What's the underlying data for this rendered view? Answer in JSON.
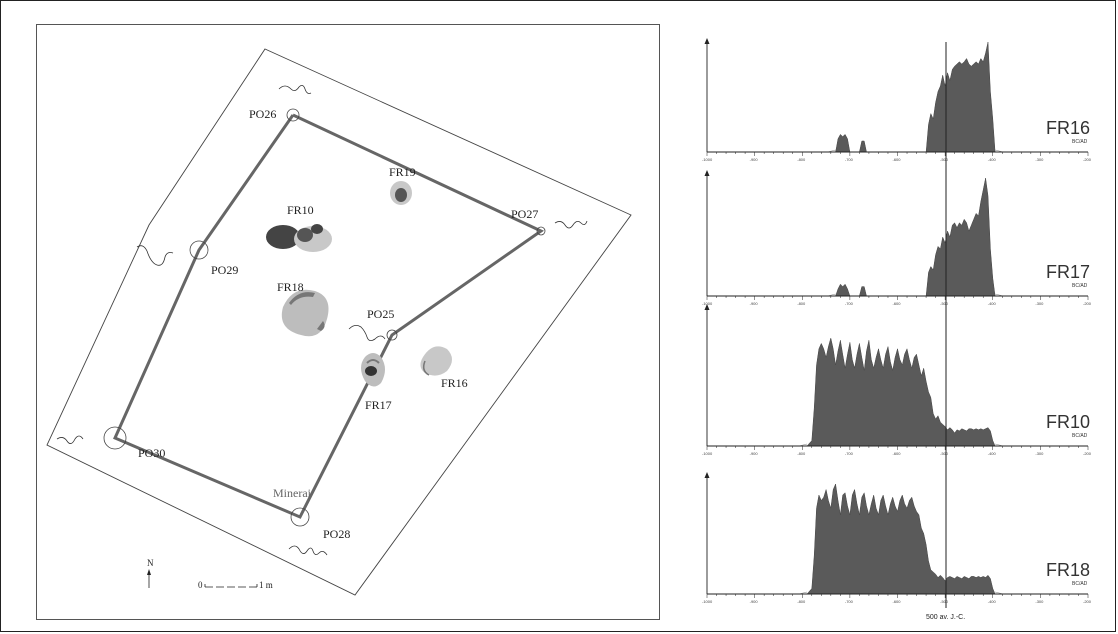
{
  "plan": {
    "posts": [
      "PO26",
      "PO27",
      "PO29",
      "PO25",
      "PO30",
      "PO28"
    ],
    "features": [
      "FR19",
      "FR10",
      "FR18",
      "FR17",
      "FR16"
    ],
    "minerai_label": "Minerai",
    "north_label": "N",
    "scale": {
      "start": "0",
      "end": "1 m"
    }
  },
  "charts": {
    "unit_label": "BC/AD",
    "footer_label": "500 av. J.-C.",
    "colors": {
      "fill": "#5a5a5a",
      "outline": "#888888"
    },
    "tick_labels": [
      "-1000",
      "-900",
      "-800",
      "-700",
      "-600",
      "-500",
      "-400",
      "-300",
      "-200"
    ]
  },
  "chart_data": [
    {
      "type": "area",
      "title": "FR16",
      "xlim": [
        -1000,
        -200
      ],
      "x": [
        -730,
        -725,
        -720,
        -715,
        -710,
        -705,
        -700,
        -680,
        -675,
        -670,
        -665,
        -540,
        -535,
        -530,
        -525,
        -520,
        -515,
        -510,
        -505,
        -500,
        -495,
        -490,
        -485,
        -480,
        -475,
        -470,
        -465,
        -460,
        -455,
        -450,
        -445,
        -440,
        -435,
        -430,
        -425,
        -420,
        -415,
        -410,
        -405,
        -400,
        -395
      ],
      "y": [
        0,
        0.12,
        0.16,
        0.14,
        0.16,
        0.12,
        0,
        0,
        0.1,
        0.1,
        0,
        0,
        0.25,
        0.35,
        0.3,
        0.45,
        0.55,
        0.6,
        0.7,
        0.6,
        0.72,
        0.65,
        0.75,
        0.78,
        0.8,
        0.82,
        0.8,
        0.82,
        0.85,
        0.8,
        0.78,
        0.8,
        0.82,
        0.8,
        0.85,
        0.82,
        0.9,
        1.0,
        0.55,
        0.3,
        0
      ]
    },
    {
      "type": "area",
      "title": "FR17",
      "xlim": [
        -1000,
        -200
      ],
      "x": [
        -730,
        -725,
        -720,
        -715,
        -710,
        -705,
        -700,
        -680,
        -675,
        -670,
        -665,
        -540,
        -535,
        -530,
        -525,
        -520,
        -515,
        -510,
        -505,
        -500,
        -495,
        -490,
        -485,
        -480,
        -475,
        -470,
        -465,
        -460,
        -455,
        -450,
        -445,
        -440,
        -435,
        -430,
        -425,
        -420,
        -415,
        -410,
        -405,
        -400,
        -395
      ],
      "y": [
        0,
        0.06,
        0.1,
        0.08,
        0.1,
        0.06,
        0,
        0,
        0.08,
        0.08,
        0,
        0,
        0.2,
        0.25,
        0.22,
        0.35,
        0.42,
        0.4,
        0.5,
        0.45,
        0.55,
        0.5,
        0.6,
        0.62,
        0.58,
        0.62,
        0.6,
        0.65,
        0.62,
        0.55,
        0.6,
        0.65,
        0.7,
        0.68,
        0.8,
        0.9,
        1.0,
        0.85,
        0.4,
        0.15,
        0
      ]
    },
    {
      "type": "area",
      "title": "FR10",
      "xlim": [
        -1000,
        -200
      ],
      "x": [
        -790,
        -780,
        -775,
        -770,
        -765,
        -760,
        -755,
        -750,
        -745,
        -740,
        -735,
        -730,
        -725,
        -720,
        -715,
        -710,
        -705,
        -700,
        -695,
        -690,
        -685,
        -680,
        -675,
        -670,
        -665,
        -660,
        -655,
        -650,
        -645,
        -640,
        -635,
        -630,
        -625,
        -620,
        -615,
        -610,
        -605,
        -600,
        -595,
        -590,
        -585,
        -580,
        -575,
        -570,
        -565,
        -560,
        -555,
        -550,
        -545,
        -540,
        -535,
        -530,
        -525,
        -520,
        -515,
        -510,
        -505,
        -500,
        -495,
        -490,
        -485,
        -480,
        -475,
        -470,
        -465,
        -460,
        -455,
        -450,
        -445,
        -440,
        -435,
        -430,
        -425,
        -420,
        -415,
        -410,
        -405,
        -400,
        -395
      ],
      "y": [
        0,
        0.05,
        0.35,
        0.75,
        0.9,
        0.95,
        0.9,
        0.82,
        0.92,
        1.0,
        0.9,
        0.75,
        0.88,
        0.98,
        0.85,
        0.72,
        0.85,
        0.96,
        0.8,
        0.72,
        0.85,
        0.95,
        0.82,
        0.7,
        0.88,
        0.98,
        0.8,
        0.72,
        0.82,
        0.9,
        0.8,
        0.72,
        0.85,
        0.92,
        0.78,
        0.7,
        0.82,
        0.9,
        0.8,
        0.75,
        0.85,
        0.9,
        0.8,
        0.72,
        0.82,
        0.85,
        0.75,
        0.65,
        0.72,
        0.6,
        0.5,
        0.45,
        0.3,
        0.25,
        0.28,
        0.22,
        0.2,
        0.18,
        0.15,
        0.17,
        0.15,
        0.12,
        0.15,
        0.14,
        0.16,
        0.15,
        0.14,
        0.16,
        0.16,
        0.15,
        0.16,
        0.15,
        0.16,
        0.15,
        0.16,
        0.17,
        0.14,
        0.05,
        0
      ]
    },
    {
      "type": "area",
      "title": "FR18",
      "xlim": [
        -1000,
        -200
      ],
      "x": [
        -790,
        -780,
        -775,
        -770,
        -765,
        -760,
        -755,
        -750,
        -745,
        -740,
        -735,
        -730,
        -725,
        -720,
        -715,
        -710,
        -705,
        -700,
        -695,
        -690,
        -685,
        -680,
        -675,
        -670,
        -665,
        -660,
        -655,
        -650,
        -645,
        -640,
        -635,
        -630,
        -625,
        -620,
        -615,
        -610,
        -605,
        -600,
        -595,
        -590,
        -585,
        -580,
        -575,
        -570,
        -565,
        -560,
        -555,
        -550,
        -545,
        -540,
        -535,
        -530,
        -525,
        -520,
        -515,
        -510,
        -505,
        -500,
        -495,
        -490,
        -485,
        -480,
        -475,
        -470,
        -465,
        -460,
        -455,
        -450,
        -445,
        -440,
        -435,
        -430,
        -425,
        -420,
        -415,
        -410,
        -405,
        -400,
        -395
      ],
      "y": [
        0,
        0.05,
        0.35,
        0.78,
        0.9,
        0.85,
        0.88,
        0.95,
        0.85,
        0.78,
        0.95,
        1.0,
        0.85,
        0.72,
        0.9,
        0.92,
        0.8,
        0.72,
        0.9,
        0.95,
        0.82,
        0.72,
        0.88,
        0.92,
        0.8,
        0.72,
        0.82,
        0.9,
        0.78,
        0.72,
        0.85,
        0.9,
        0.8,
        0.72,
        0.82,
        0.88,
        0.8,
        0.75,
        0.85,
        0.9,
        0.82,
        0.78,
        0.85,
        0.88,
        0.8,
        0.75,
        0.72,
        0.6,
        0.55,
        0.45,
        0.3,
        0.22,
        0.2,
        0.18,
        0.15,
        0.17,
        0.15,
        0.12,
        0.15,
        0.16,
        0.15,
        0.14,
        0.16,
        0.15,
        0.14,
        0.16,
        0.15,
        0.14,
        0.16,
        0.16,
        0.15,
        0.16,
        0.15,
        0.16,
        0.15,
        0.17,
        0.14,
        0.05,
        0
      ]
    }
  ]
}
